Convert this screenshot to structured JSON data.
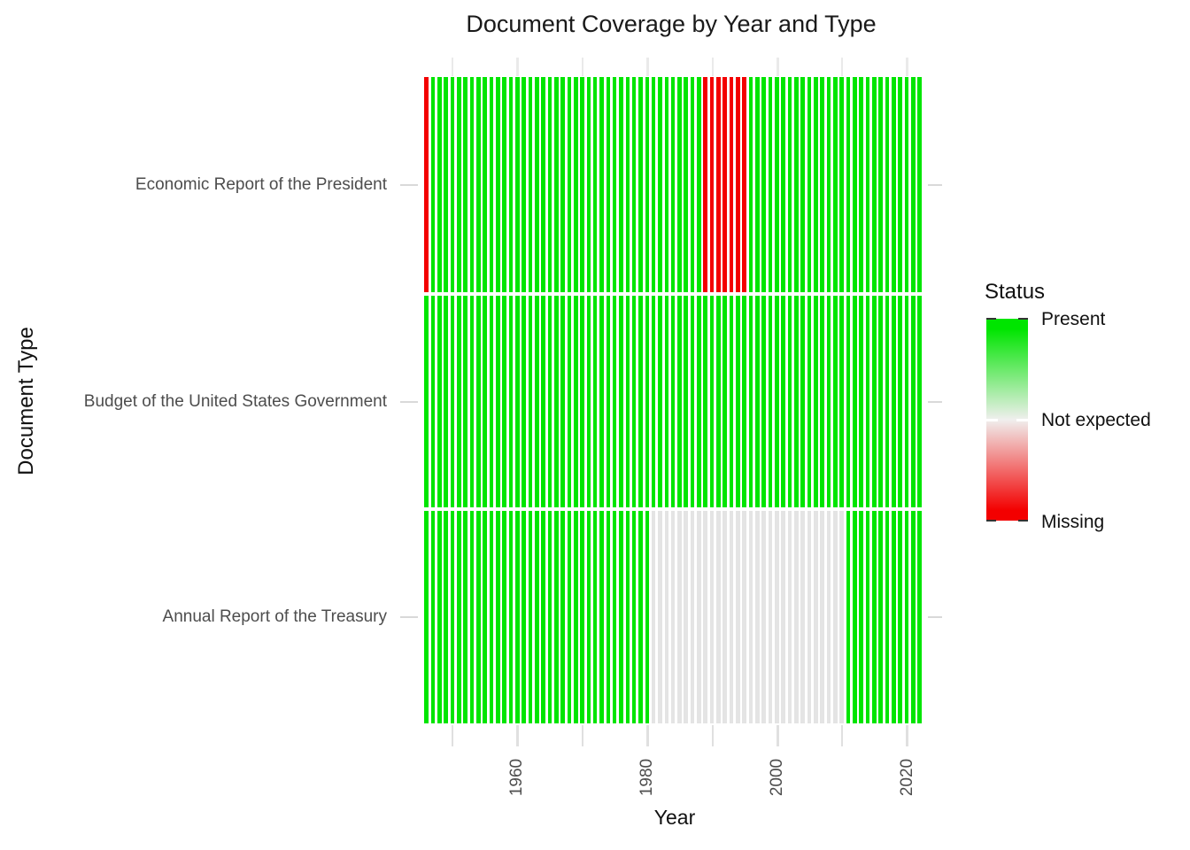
{
  "title": "Document Coverage by Year and Type",
  "axes": {
    "x_label": "Year",
    "y_label": "Document Type"
  },
  "legend": {
    "title": "Status",
    "entries": [
      {
        "label": "Present",
        "status": "present"
      },
      {
        "label": "Not expected",
        "status": "not_expected"
      },
      {
        "label": "Missing",
        "status": "missing"
      }
    ]
  },
  "chart_data": {
    "type": "heatmap",
    "title": "Document Coverage by Year and Type",
    "xlabel": "Year",
    "ylabel": "Document Type",
    "x_range": {
      "start_year": 1946,
      "end_year": 2022
    },
    "x_major_ticks": [
      1960,
      1980,
      2000,
      2020
    ],
    "x_minor_gridlines": [
      1950,
      1970,
      1990,
      2010
    ],
    "x_tick_labels": [
      "1960",
      "1980",
      "2000",
      "2020"
    ],
    "status_colors": {
      "present": "#00E500",
      "not_expected": "#E4E4E4",
      "missing": "#F30000",
      "legend_mid": "#F0EFEE"
    },
    "rows": [
      {
        "label": "Economic Report of the President",
        "segments": [
          {
            "status": "missing",
            "from": 1946,
            "to": 1946
          },
          {
            "status": "present",
            "from": 1947,
            "to": 1988
          },
          {
            "status": "missing",
            "from": 1989,
            "to": 1995
          },
          {
            "status": "present",
            "from": 1996,
            "to": 2022
          }
        ]
      },
      {
        "label": "Budget of the United States Government",
        "segments": [
          {
            "status": "present",
            "from": 1946,
            "to": 2022
          }
        ]
      },
      {
        "label": "Annual Report of the Treasury",
        "segments": [
          {
            "status": "present",
            "from": 1946,
            "to": 1980
          },
          {
            "status": "not_expected",
            "from": 1981,
            "to": 2010
          },
          {
            "status": "present",
            "from": 2011,
            "to": 2022
          }
        ]
      }
    ]
  }
}
